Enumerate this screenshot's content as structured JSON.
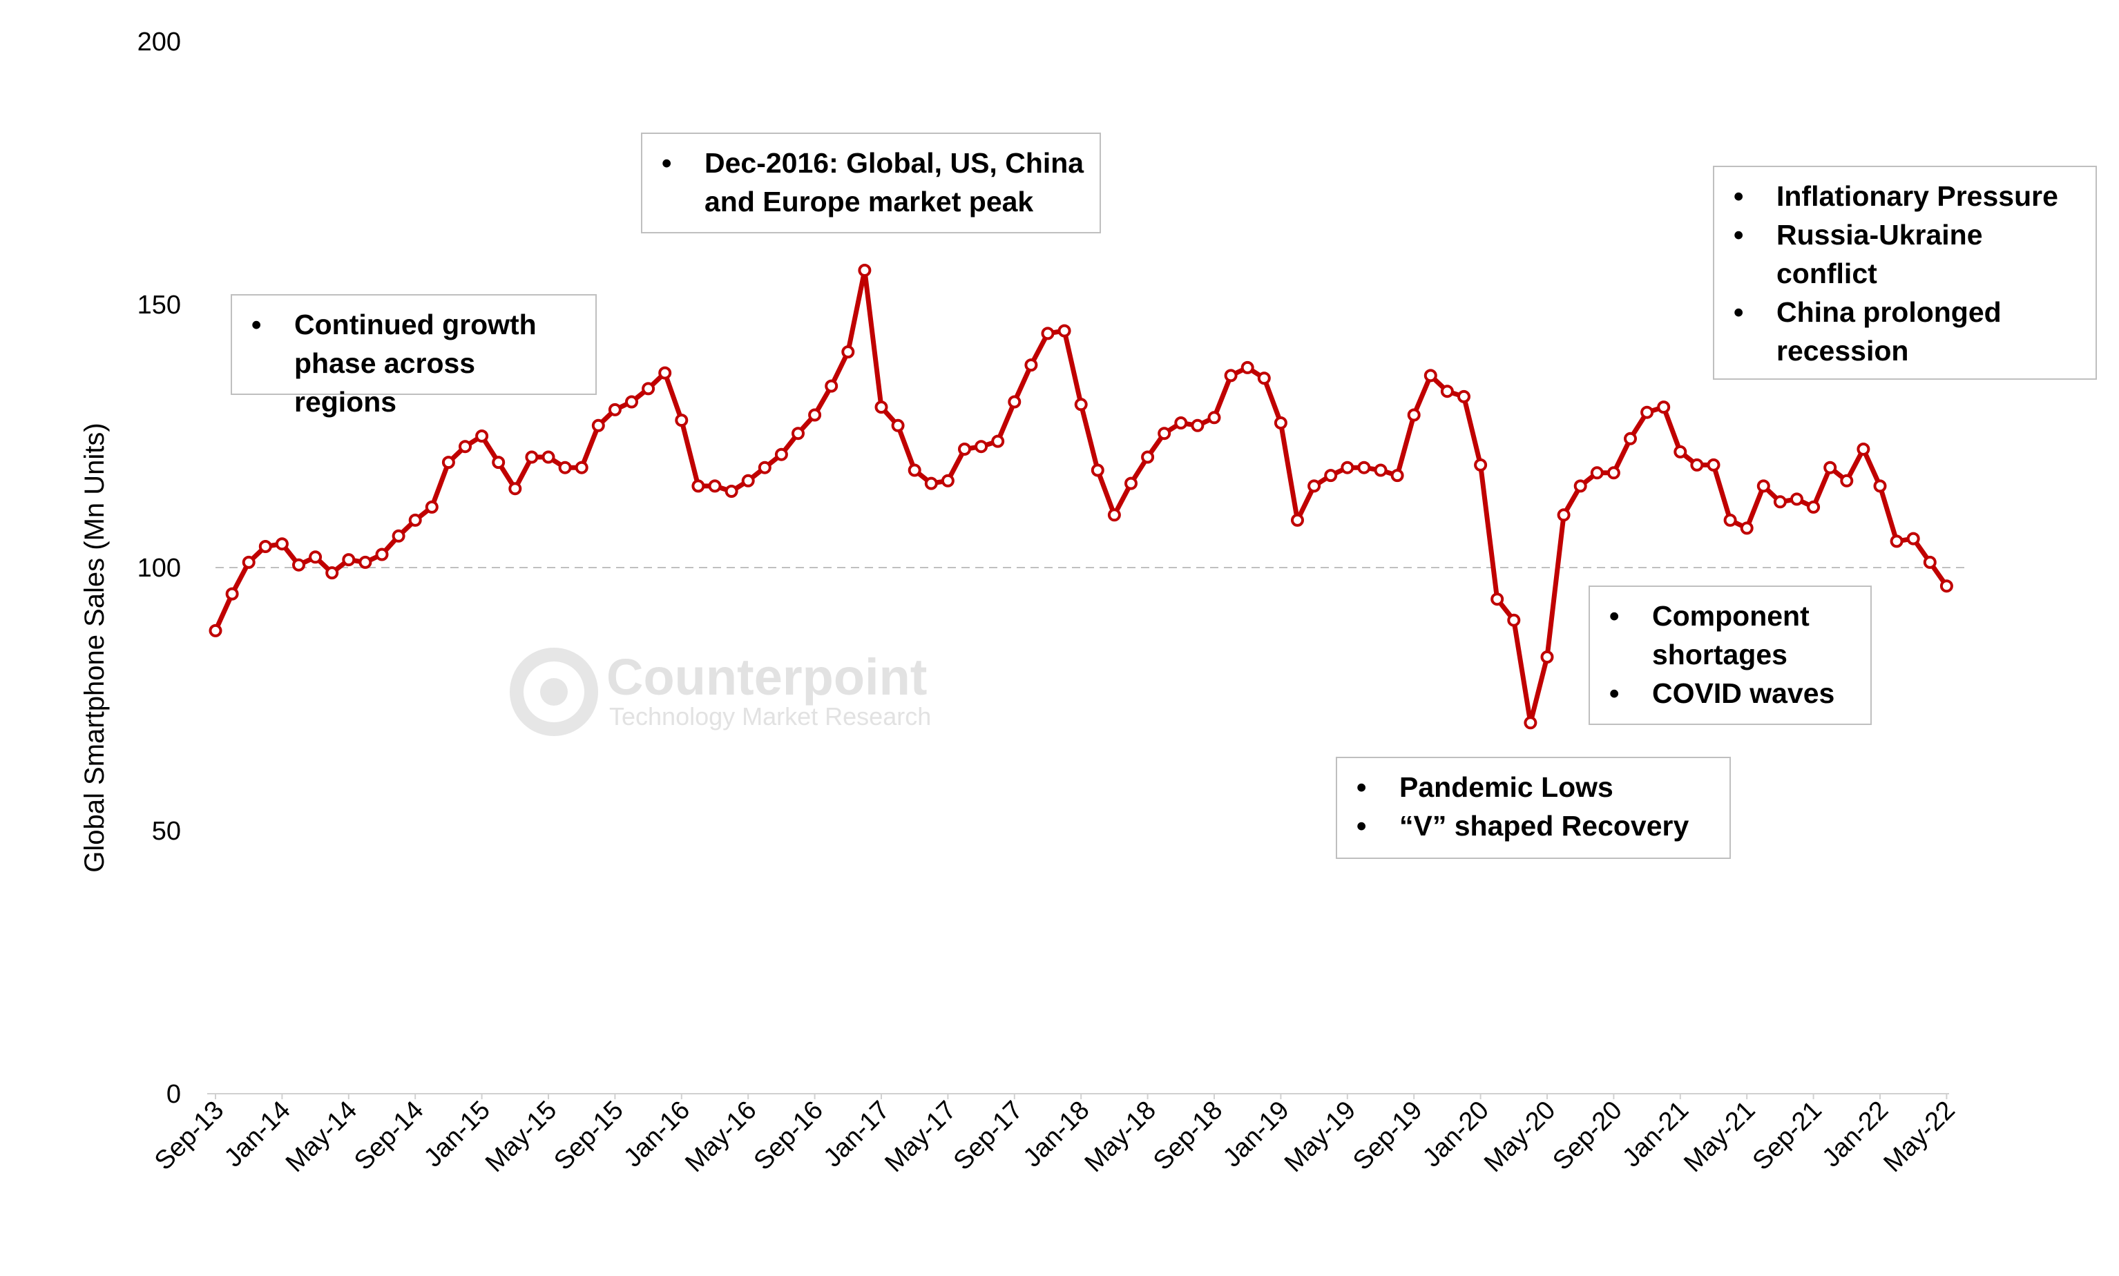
{
  "chart_data": {
    "type": "line",
    "ylabel": "Global Smartphone Sales (Mn Units)",
    "ylim": [
      0,
      200
    ],
    "yticks": [
      0,
      50,
      100,
      150,
      200
    ],
    "reference_line": 100,
    "grid": false,
    "line_color": "#c00000",
    "xtick_labels": [
      "Sep-13",
      "Jan-14",
      "May-14",
      "Sep-14",
      "Jan-15",
      "May-15",
      "Sep-15",
      "Jan-16",
      "May-16",
      "Sep-16",
      "Jan-17",
      "May-17",
      "Sep-17",
      "Jan-18",
      "May-18",
      "Sep-18",
      "Jan-19",
      "May-19",
      "Sep-19",
      "Jan-20",
      "May-20",
      "Sep-20",
      "Jan-21",
      "May-21",
      "Sep-21",
      "Jan-22",
      "May-22"
    ],
    "start_month": "Sep-13",
    "values": [
      88,
      95,
      101,
      104,
      104.5,
      100.5,
      102,
      99,
      101.5,
      101,
      102.5,
      106,
      109,
      111.5,
      120,
      123,
      125,
      120,
      115,
      121,
      121,
      119,
      119,
      127,
      130,
      131.5,
      134,
      137,
      128,
      115.5,
      115.5,
      114.5,
      116.5,
      119,
      121.5,
      125.5,
      129,
      134.5,
      141,
      156.5,
      130.5,
      127,
      118.5,
      116,
      116.5,
      122.5,
      123,
      124,
      131.5,
      138.5,
      144.5,
      145,
      131,
      118.5,
      110,
      116,
      121,
      125.5,
      127.5,
      127,
      128.5,
      136.5,
      138,
      136,
      127.5,
      109,
      115.5,
      117.5,
      119,
      119,
      118.5,
      117.5,
      129,
      136.5,
      133.5,
      132.5,
      119.5,
      94,
      90,
      70.5,
      83,
      110,
      115.5,
      118,
      118,
      124.5,
      129.5,
      130.5,
      122,
      119.5,
      119.5,
      109,
      107.5,
      115.5,
      112.5,
      113,
      111.5,
      119,
      116.5,
      122.5,
      115.5,
      105,
      105.5,
      101,
      96.5
    ]
  },
  "watermark": {
    "title": "Counterpoint",
    "subtitle": "Technology Market Research"
  },
  "annotations": {
    "growth": [
      "Continued growth phase across regions"
    ],
    "peak": [
      "Dec-2016: Global, US, China and Europe market peak"
    ],
    "inflation": [
      "Inflationary Pressure",
      "Russia-Ukraine conflict",
      "China prolonged recession"
    ],
    "component": [
      "Component shortages",
      "COVID waves"
    ],
    "pandemic": [
      "Pandemic Lows",
      "“V” shaped Recovery"
    ]
  }
}
